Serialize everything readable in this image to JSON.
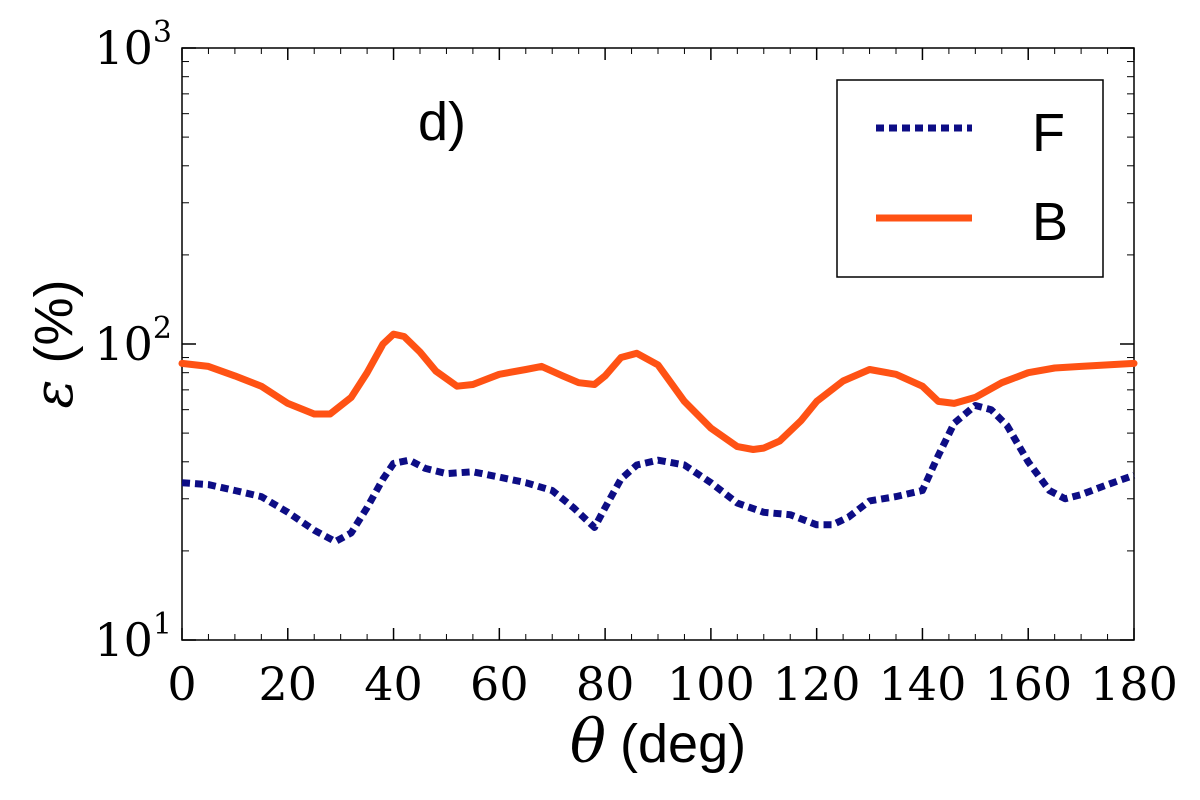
{
  "chart_data": {
    "type": "line",
    "panel_label": "d)",
    "xlabel_symbol": "θ",
    "xlabel_unit": "(deg)",
    "ylabel_symbol": "ε",
    "ylabel_unit": "(%)",
    "xlim": [
      0,
      180
    ],
    "ylim": [
      10,
      1000
    ],
    "yscale": "log",
    "grid": false,
    "legend_placement": "top-right",
    "x_ticks": [
      "0",
      "20",
      "40",
      "60",
      "80",
      "100",
      "120",
      "140",
      "160",
      "180"
    ],
    "y_ticks": [
      {
        "base": "10",
        "exp": "1"
      },
      {
        "base": "10",
        "exp": "2"
      },
      {
        "base": "10",
        "exp": "3"
      }
    ],
    "series": [
      {
        "name": "F",
        "color": "#0d0d85",
        "style": "dotted",
        "x": [
          0,
          5,
          10,
          15,
          20,
          25,
          29,
          32,
          35,
          38,
          40,
          43,
          46,
          50,
          55,
          60,
          65,
          70,
          74,
          78,
          80,
          83,
          86,
          90,
          95,
          100,
          105,
          110,
          115,
          120,
          123,
          126,
          130,
          135,
          140,
          143,
          146,
          150,
          153,
          156,
          160,
          164,
          167,
          170,
          175,
          180
        ],
        "y": [
          34,
          33.5,
          32,
          30.5,
          27,
          23.5,
          21.5,
          23,
          28,
          35,
          39.5,
          40.5,
          38,
          36.5,
          37,
          35.5,
          34,
          32,
          28,
          24,
          28,
          35,
          39,
          40.5,
          39,
          34,
          29,
          27,
          26.5,
          24.5,
          24.5,
          26,
          29.5,
          30.5,
          32,
          42,
          54,
          62,
          60,
          53,
          40,
          32,
          30,
          31,
          33.5,
          36
        ]
      },
      {
        "name": "B",
        "color": "#ff5214",
        "style": "solid",
        "x": [
          0,
          5,
          10,
          15,
          20,
          25,
          28,
          32,
          35,
          38,
          40,
          42,
          45,
          48,
          52,
          55,
          60,
          65,
          68,
          72,
          75,
          78,
          80,
          83,
          86,
          90,
          95,
          100,
          105,
          108,
          110,
          113,
          117,
          120,
          125,
          130,
          135,
          140,
          143,
          146,
          150,
          155,
          160,
          165,
          170,
          175,
          180
        ],
        "y": [
          86,
          84,
          78,
          72,
          63,
          58,
          58,
          66,
          80,
          100,
          108,
          106,
          94,
          81,
          72,
          73,
          79,
          82,
          84,
          78,
          74,
          73,
          78,
          90,
          93,
          85,
          64,
          52,
          45,
          44,
          44.5,
          47,
          55,
          64,
          75,
          82,
          79,
          72,
          64,
          63,
          66,
          74,
          80,
          83,
          84,
          85,
          86
        ]
      }
    ]
  }
}
